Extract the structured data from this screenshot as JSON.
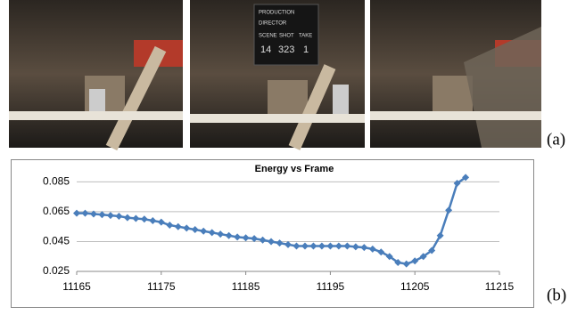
{
  "figure": {
    "panel_a_label": "(a)",
    "panel_b_label": "(b)",
    "clapperboard": {
      "production": "PRODUCTION",
      "director": "DIRECTOR",
      "scene": "SCENE",
      "shot": "SHOT",
      "take": "TAKE",
      "scene_value": "14",
      "shot_value": "323",
      "take_value": "1"
    }
  },
  "chart_data": {
    "type": "line",
    "title": "Energy vs Frame",
    "x": [
      11165,
      11166,
      11167,
      11168,
      11169,
      11170,
      11171,
      11172,
      11173,
      11174,
      11175,
      11176,
      11177,
      11178,
      11179,
      11180,
      11181,
      11182,
      11183,
      11184,
      11185,
      11186,
      11187,
      11188,
      11189,
      11190,
      11191,
      11192,
      11193,
      11194,
      11195,
      11196,
      11197,
      11198,
      11199,
      11200,
      11201,
      11202,
      11203,
      11204,
      11205,
      11206,
      11207,
      11208,
      11209,
      11210,
      11211
    ],
    "values": [
      0.064,
      0.064,
      0.0635,
      0.063,
      0.0625,
      0.062,
      0.061,
      0.0605,
      0.06,
      0.059,
      0.058,
      0.056,
      0.055,
      0.054,
      0.053,
      0.052,
      0.051,
      0.05,
      0.049,
      0.048,
      0.0475,
      0.047,
      0.046,
      0.045,
      0.044,
      0.043,
      0.042,
      0.042,
      0.042,
      0.042,
      0.042,
      0.042,
      0.042,
      0.0415,
      0.041,
      0.04,
      0.038,
      0.035,
      0.031,
      0.03,
      0.032,
      0.035,
      0.039,
      0.049,
      0.066,
      0.084,
      0.088
    ],
    "color": "#4a7ebb",
    "xlim": [
      11165,
      11215
    ],
    "xticks": [
      11165,
      11175,
      11185,
      11195,
      11205,
      11215
    ],
    "ylim": [
      0.025,
      0.09
    ],
    "yticks": [
      0.025,
      0.045,
      0.065,
      0.085
    ],
    "grid": true
  }
}
